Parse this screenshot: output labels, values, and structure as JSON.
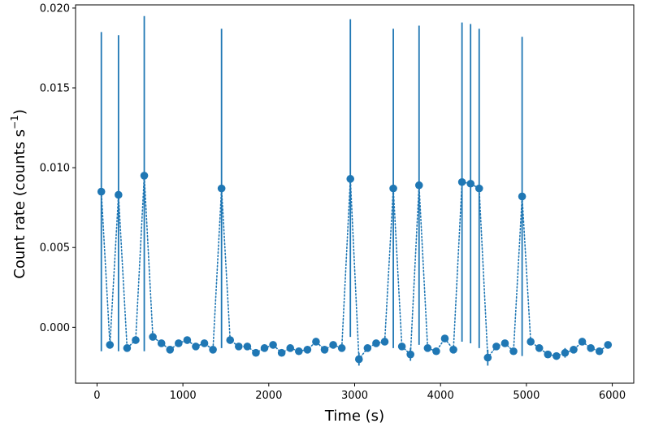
{
  "chart_data": {
    "type": "scatter",
    "title": "",
    "xlabel": "Time (s)",
    "ylabel_main": "Count rate (counts s",
    "ylabel_sup": "−1",
    "ylabel_end": ")",
    "xlim": [
      -250,
      6250
    ],
    "ylim": [
      -0.0035,
      0.0202
    ],
    "xticks": [
      0,
      1000,
      2000,
      3000,
      4000,
      5000,
      6000
    ],
    "xtick_labels": [
      "0",
      "1000",
      "2000",
      "3000",
      "4000",
      "5000",
      "6000"
    ],
    "yticks": [
      0.0,
      0.005,
      0.01,
      0.015,
      0.02
    ],
    "ytick_labels": [
      "0.000",
      "0.005",
      "0.010",
      "0.015",
      "0.020"
    ],
    "grid": false,
    "legend": "none",
    "color": "#1f77b4",
    "line_style": "dotted",
    "x": [
      50,
      150,
      250,
      350,
      450,
      550,
      650,
      750,
      850,
      950,
      1050,
      1150,
      1250,
      1350,
      1450,
      1550,
      1650,
      1750,
      1850,
      1950,
      2050,
      2150,
      2250,
      2350,
      2450,
      2550,
      2650,
      2750,
      2850,
      2950,
      3050,
      3150,
      3250,
      3350,
      3450,
      3550,
      3650,
      3750,
      3850,
      3950,
      4050,
      4150,
      4250,
      4350,
      4450,
      4550,
      4650,
      4750,
      4850,
      4950,
      5050,
      5150,
      5250,
      5350,
      5450,
      5550,
      5650,
      5750,
      5850,
      5950
    ],
    "y": [
      0.0085,
      -0.0011,
      0.0083,
      -0.0013,
      -0.0008,
      0.0095,
      -0.0006,
      -0.001,
      -0.0014,
      -0.001,
      -0.0008,
      -0.0012,
      -0.001,
      -0.0014,
      0.0087,
      -0.0008,
      -0.0012,
      -0.0012,
      -0.0016,
      -0.0013,
      -0.0011,
      -0.0016,
      -0.0013,
      -0.0015,
      -0.0014,
      -0.0009,
      -0.0014,
      -0.0011,
      -0.0013,
      0.0093,
      -0.002,
      -0.0013,
      -0.001,
      -0.0009,
      0.0087,
      -0.0012,
      -0.0017,
      0.0089,
      -0.0013,
      -0.0015,
      -0.0007,
      -0.0014,
      0.0091,
      0.009,
      0.0087,
      -0.0019,
      -0.0012,
      -0.001,
      -0.0015,
      0.0082,
      -0.0009,
      -0.0013,
      -0.0017,
      -0.0018,
      -0.0016,
      -0.0014,
      -0.0009,
      -0.0013,
      -0.0015,
      -0.0011
    ],
    "y_err_low": [
      -0.0015,
      -0.0013,
      -0.0015,
      -0.0015,
      -0.001,
      -0.0015,
      -0.0008,
      -0.0012,
      -0.0016,
      -0.0012,
      -0.001,
      -0.0014,
      -0.0012,
      -0.0016,
      -0.0013,
      -0.001,
      -0.0014,
      -0.0014,
      -0.0018,
      -0.0015,
      -0.0013,
      -0.0018,
      -0.0015,
      -0.0017,
      -0.0016,
      -0.0011,
      -0.0016,
      -0.0013,
      -0.0015,
      -0.0006,
      -0.0024,
      -0.0015,
      -0.0012,
      -0.0011,
      -0.0013,
      -0.0014,
      -0.0021,
      -0.0011,
      -0.0015,
      -0.0017,
      -0.0009,
      -0.0016,
      -0.0009,
      -0.001,
      -0.0013,
      -0.0024,
      -0.0014,
      -0.0012,
      -0.0017,
      -0.0018,
      -0.0011,
      -0.0015,
      -0.0019,
      -0.002,
      -0.0019,
      -0.0016,
      -0.0011,
      -0.0015,
      -0.0017,
      -0.0013
    ],
    "y_err_high": [
      0.0185,
      -0.0009,
      0.0183,
      -0.0011,
      -0.0006,
      0.0195,
      -0.0004,
      -0.0008,
      -0.0012,
      -0.0008,
      -0.0006,
      -0.001,
      -0.0008,
      -0.0012,
      0.0187,
      -0.0006,
      -0.001,
      -0.001,
      -0.0014,
      -0.0011,
      -0.0009,
      -0.0014,
      -0.0011,
      -0.0013,
      -0.0012,
      -0.0007,
      -0.0012,
      -0.0009,
      -0.0011,
      0.0193,
      -0.0016,
      -0.0011,
      -0.0008,
      -0.0007,
      0.0187,
      -0.001,
      -0.0013,
      0.0189,
      -0.0011,
      -0.0013,
      -0.0005,
      -0.0012,
      0.0191,
      0.019,
      0.0187,
      -0.0014,
      -0.001,
      -0.0008,
      -0.0013,
      0.0182,
      -0.0007,
      -0.0011,
      -0.0015,
      -0.0016,
      -0.0013,
      -0.0012,
      -0.0007,
      -0.0011,
      -0.0013,
      -0.0009
    ]
  }
}
